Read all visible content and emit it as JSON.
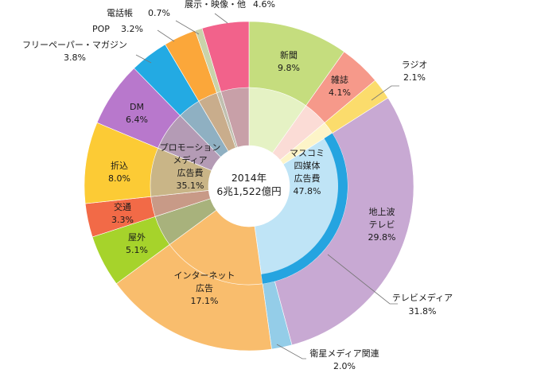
{
  "center_label": {
    "year": "2014年",
    "total": "6兆1,522億円"
  },
  "chart_data": {
    "type": "pie",
    "subtype": "nested-donut",
    "start_angle_deg": 0,
    "direction": "clockwise",
    "outer_ring": [
      {
        "name": "新聞",
        "value": 9.8,
        "label": "9.8%",
        "color": "#c5dd7e"
      },
      {
        "name": "雑誌",
        "value": 4.1,
        "label": "4.1%",
        "color": "#f6998a"
      },
      {
        "name": "ラジオ",
        "value": 2.1,
        "label": "2.1%",
        "color": "#fbdc6c"
      },
      {
        "name": "地上波 テレビ",
        "value": 29.8,
        "label": "29.8%",
        "color": "#c8a9d3"
      },
      {
        "name": "衛星メディア関連",
        "value": 2.0,
        "label": "2.0%",
        "color": "#94cde8"
      },
      {
        "name": "インターネット 広告",
        "value": 17.1,
        "label": "17.1%",
        "color": "#f9bd6d"
      },
      {
        "name": "屋外",
        "value": 5.1,
        "label": "5.1%",
        "color": "#a6d32b"
      },
      {
        "name": "交通",
        "value": 3.3,
        "label": "3.3%",
        "color": "#f26a47"
      },
      {
        "name": "折込",
        "value": 8.0,
        "label": "8.0%",
        "color": "#fccb35"
      },
      {
        "name": "DM",
        "value": 6.4,
        "label": "6.4%",
        "color": "#b878cc"
      },
      {
        "name": "フリーペーパー・マガジン",
        "value": 3.8,
        "label": "3.8%",
        "color": "#23aae3"
      },
      {
        "name": "POP",
        "value": 3.2,
        "label": "3.2%",
        "color": "#fba73a"
      },
      {
        "name": "電話帳",
        "value": 0.7,
        "label": "0.7%",
        "color": "#c9d3aa"
      },
      {
        "name": "展示・映像・他",
        "value": 4.6,
        "label": "4.6%",
        "color": "#f2628b"
      }
    ],
    "inner_ring": [
      {
        "name": "マスコミ 四媒体 広告費",
        "value": 47.8,
        "label": "47.8%",
        "color": "#bfe4f6"
      },
      {
        "name": "インターネット 広告",
        "value": 17.1,
        "label": "17.1%",
        "color": "#f9bd6d"
      },
      {
        "name": "プロモーション メディア 広告費",
        "value": 35.1,
        "label": "35.1%",
        "color": "#bca3a0"
      }
    ],
    "inner_detail_ring": [
      {
        "name": "新聞",
        "value": 9.8,
        "color": "#e5f2c4"
      },
      {
        "name": "雑誌",
        "value": 4.1,
        "color": "#fbdcd6"
      },
      {
        "name": "ラジオ",
        "value": 2.1,
        "color": "#fdf4c8"
      },
      {
        "name": "テレビメディア",
        "value": 31.8,
        "color": "#bfe4f6"
      },
      {
        "name": "インターネット 広告",
        "value": 17.1,
        "color": "#f9bd6d"
      },
      {
        "name": "屋外",
        "value": 5.1,
        "color": "#a8b27c"
      },
      {
        "name": "交通",
        "value": 3.3,
        "color": "#c89a87"
      },
      {
        "name": "折込",
        "value": 8.0,
        "color": "#c9b587"
      },
      {
        "name": "DM",
        "value": 6.4,
        "color": "#b49bb5"
      },
      {
        "name": "フリーペーパー・マガジン",
        "value": 3.8,
        "color": "#8fb0c2"
      },
      {
        "name": "POP",
        "value": 3.2,
        "color": "#c9ad8c"
      },
      {
        "name": "電話帳",
        "value": 0.7,
        "color": "#c0c0b0"
      },
      {
        "name": "展示・映像・他",
        "value": 4.6,
        "color": "#c8a0a8"
      }
    ],
    "tv_arc": {
      "name": "テレビメディア",
      "value": 31.8,
      "label": "31.8%",
      "color": "#25a4e0",
      "start_pct": 16.0
    }
  }
}
